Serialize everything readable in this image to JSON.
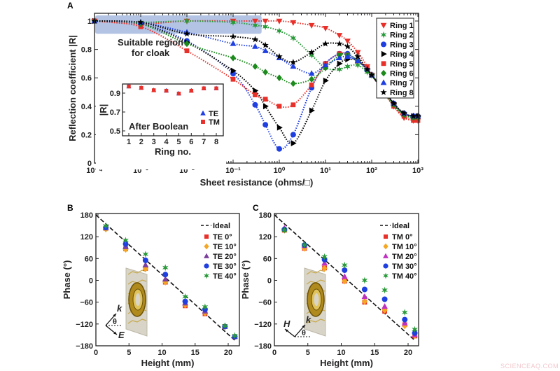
{
  "panels": {
    "a": "A",
    "b": "B",
    "c": "C"
  },
  "watermark": "SCIENCEAQ.COM",
  "chart_data": [
    {
      "id": "A",
      "type": "line",
      "xscale": "log",
      "xlabel": "Sheet resistance (ohms/□)",
      "ylabel": "Reflection coefficient |R|",
      "xlim": [
        0.0001,
        1000
      ],
      "ylim": [
        0,
        1.05
      ],
      "xtick_values": [
        0.0001,
        0.001,
        0.01,
        0.1,
        1,
        10,
        100,
        1000
      ],
      "xtick_labels": [
        "10⁻⁴",
        "10⁻³",
        "10⁻²",
        "10⁻¹",
        "10⁰",
        "10¹",
        "10²",
        "10³"
      ],
      "ytick_values": [
        0,
        0.2,
        0.4,
        0.6,
        0.8,
        1
      ],
      "ytick_labels": [
        "0",
        "0.2",
        "0.4",
        "0.6",
        "0.8",
        "1"
      ],
      "legend_position": "top-right",
      "annotation": {
        "lines": [
          "Suitable region",
          "for cloak"
        ],
        "region_x": [
          0.0001,
          0.4
        ],
        "region_y": [
          0.93,
          1.0
        ],
        "color": "#9fb4dc"
      },
      "x": [
        0.0001,
        0.001,
        0.01,
        0.1,
        0.3,
        0.5,
        1,
        2,
        5,
        10,
        20,
        30,
        50,
        80,
        100,
        300,
        500,
        800,
        1000
      ],
      "series": [
        {
          "name": "Ring 1",
          "color": "#e8302a",
          "marker": "triangle-down",
          "values": [
            1,
            0.98,
            1,
            1,
            1,
            1,
            1,
            0.99,
            0.97,
            0.95,
            0.9,
            0.86,
            0.78,
            0.68,
            0.62,
            0.4,
            0.32,
            0.3,
            0.3
          ]
        },
        {
          "name": "Ring 2",
          "color": "#2a9a3a",
          "marker": "star6",
          "values": [
            1,
            0.99,
            1,
            0.99,
            0.97,
            0.96,
            0.93,
            0.88,
            0.76,
            0.67,
            0.66,
            0.68,
            0.69,
            0.64,
            0.62,
            0.41,
            0.34,
            0.32,
            0.32
          ]
        },
        {
          "name": "Ring 3",
          "color": "#1f3fe0",
          "marker": "circle",
          "values": [
            1,
            0.98,
            0.86,
            0.63,
            0.41,
            0.27,
            0.1,
            0.2,
            0.53,
            0.7,
            0.77,
            0.77,
            0.72,
            0.66,
            0.62,
            0.42,
            0.35,
            0.33,
            0.33
          ]
        },
        {
          "name": "Ring 4",
          "color": "#000000",
          "marker": "triangle-right",
          "values": [
            1,
            0.98,
            0.85,
            0.65,
            0.51,
            0.4,
            0.25,
            0.14,
            0.37,
            0.58,
            0.7,
            0.73,
            0.72,
            0.66,
            0.62,
            0.42,
            0.35,
            0.33,
            0.33
          ]
        },
        {
          "name": "Ring 5",
          "color": "#e8302a",
          "marker": "square",
          "values": [
            1,
            0.96,
            0.79,
            0.59,
            0.48,
            0.45,
            0.4,
            0.41,
            0.55,
            0.7,
            0.77,
            0.76,
            0.72,
            0.67,
            0.62,
            0.4,
            0.33,
            0.3,
            0.3
          ]
        },
        {
          "name": "Ring 6",
          "color": "#1c8a1c",
          "marker": "diamond",
          "values": [
            1,
            0.98,
            0.84,
            0.74,
            0.68,
            0.64,
            0.6,
            0.56,
            0.59,
            0.67,
            0.76,
            0.76,
            0.72,
            0.65,
            0.62,
            0.41,
            0.34,
            0.32,
            0.32
          ]
        },
        {
          "name": "Ring 7",
          "color": "#1f3fe0",
          "marker": "triangle-up",
          "values": [
            1,
            0.99,
            0.92,
            0.84,
            0.82,
            0.79,
            0.74,
            0.68,
            0.63,
            0.69,
            0.74,
            0.75,
            0.72,
            0.66,
            0.62,
            0.42,
            0.35,
            0.33,
            0.33
          ]
        },
        {
          "name": "Ring 8",
          "color": "#000000",
          "marker": "star5",
          "values": [
            1,
            0.99,
            0.91,
            0.89,
            0.87,
            0.83,
            0.75,
            0.71,
            0.78,
            0.84,
            0.84,
            0.82,
            0.75,
            0.66,
            0.62,
            0.42,
            0.35,
            0.33,
            0.33
          ]
        }
      ]
    },
    {
      "id": "A-inset",
      "type": "scatter",
      "title": "After Boolean",
      "xlabel": "Ring no.",
      "ylabel": "|R|",
      "ylim": [
        0.45,
        1.0
      ],
      "ytick_values": [
        0.9,
        0.7,
        0.5
      ],
      "ytick_labels": [
        "0.9",
        "0.7",
        "0.5"
      ],
      "x": [
        1,
        2,
        3,
        4,
        5,
        6,
        7,
        8
      ],
      "xtick_labels": [
        "1",
        "2",
        "3",
        "4",
        "5",
        "6",
        "7",
        "8"
      ],
      "series": [
        {
          "name": "TE",
          "color": "#1f3fe0",
          "marker": "triangle-up",
          "values": [
            0.97,
            0.955,
            0.93,
            0.925,
            0.895,
            0.925,
            0.95,
            0.95
          ]
        },
        {
          "name": "TM",
          "color": "#e8302a",
          "marker": "square",
          "values": [
            0.97,
            0.955,
            0.93,
            0.925,
            0.895,
            0.925,
            0.95,
            0.95
          ]
        }
      ]
    },
    {
      "id": "B",
      "type": "scatter",
      "xlabel": "Height (mm)",
      "ylabel": "Phase (°)",
      "xlim": [
        0,
        21.5
      ],
      "ylim": [
        -180,
        180
      ],
      "xtick_values": [
        0,
        5,
        10,
        15,
        20
      ],
      "xtick_labels": [
        "0",
        "5",
        "10",
        "15",
        "20"
      ],
      "ytick_values": [
        180,
        120,
        60,
        0,
        -60,
        -120,
        -180
      ],
      "ytick_labels": [
        "180",
        "120",
        "60",
        "0",
        "−60",
        "−120",
        "−180"
      ],
      "legend_position": "top-right",
      "ideal": {
        "name": "Ideal",
        "x": [
          0,
          21
        ],
        "y": [
          180,
          -165
        ]
      },
      "diagram_labels": {
        "k": "k",
        "theta": "θ",
        "field": "E"
      },
      "x": [
        1.5,
        4.5,
        7.5,
        10.5,
        13.5,
        16.5,
        19.5,
        21
      ],
      "series": [
        {
          "name": "TE 0°",
          "color": "#e8302a",
          "marker": "square",
          "values": [
            143,
            87,
            33,
            -5,
            -70,
            -92,
            -127,
            -155
          ]
        },
        {
          "name": "TE 10°",
          "color": "#f5a623",
          "marker": "diamond",
          "values": [
            141,
            85,
            32,
            -5,
            -68,
            -90,
            -127,
            -155
          ]
        },
        {
          "name": "TE 20°",
          "color": "#7b3f9e",
          "marker": "triangle-up",
          "values": [
            145,
            92,
            42,
            3,
            -63,
            -85,
            -127,
            -155
          ]
        },
        {
          "name": "TE 30°",
          "color": "#1f3fe0",
          "marker": "circle",
          "values": [
            145,
            100,
            55,
            16,
            -58,
            -80,
            -127,
            -155
          ]
        },
        {
          "name": "TE 40°",
          "color": "#2a9a3a",
          "marker": "star6",
          "values": [
            150,
            110,
            72,
            35,
            -45,
            -73,
            -125,
            -152
          ]
        }
      ]
    },
    {
      "id": "C",
      "type": "scatter",
      "xlabel": "Height (mm)",
      "ylabel": "Phase (°)",
      "xlim": [
        0,
        21.5
      ],
      "ylim": [
        -180,
        180
      ],
      "xtick_values": [
        0,
        5,
        10,
        15,
        20
      ],
      "xtick_labels": [
        "0",
        "5",
        "10",
        "15",
        "20"
      ],
      "ytick_values": [
        180,
        120,
        60,
        0,
        -60,
        -120,
        -180
      ],
      "ytick_labels": [
        "180",
        "120",
        "60",
        "0",
        "−60",
        "−120",
        "−180"
      ],
      "legend_position": "top-right",
      "ideal": {
        "name": "Ideal",
        "x": [
          0,
          21
        ],
        "y": [
          180,
          -165
        ]
      },
      "diagram_labels": {
        "k": "k",
        "theta": "θ",
        "field": "H"
      },
      "x": [
        1.5,
        4.5,
        7.5,
        10.5,
        13.5,
        16.5,
        19.5,
        21
      ],
      "series": [
        {
          "name": "TM 0°",
          "color": "#e8302a",
          "marker": "square",
          "values": [
            138,
            88,
            34,
            -2,
            -60,
            -85,
            -122,
            -153
          ]
        },
        {
          "name": "TM 10°",
          "color": "#f5a623",
          "marker": "diamond",
          "values": [
            138,
            88,
            33,
            -2,
            -58,
            -82,
            -125,
            -152
          ]
        },
        {
          "name": "TM 20°",
          "color": "#c030c0",
          "marker": "triangle-up",
          "values": [
            143,
            95,
            47,
            10,
            -45,
            -72,
            -118,
            -150
          ]
        },
        {
          "name": "TM 30°",
          "color": "#1f3fe0",
          "marker": "circle",
          "values": [
            140,
            97,
            57,
            28,
            -25,
            -52,
            -108,
            -145
          ]
        },
        {
          "name": "TM 40°",
          "color": "#2a9a3a",
          "marker": "star6",
          "values": [
            138,
            97,
            65,
            42,
            0,
            -27,
            -88,
            -135
          ]
        }
      ]
    }
  ]
}
